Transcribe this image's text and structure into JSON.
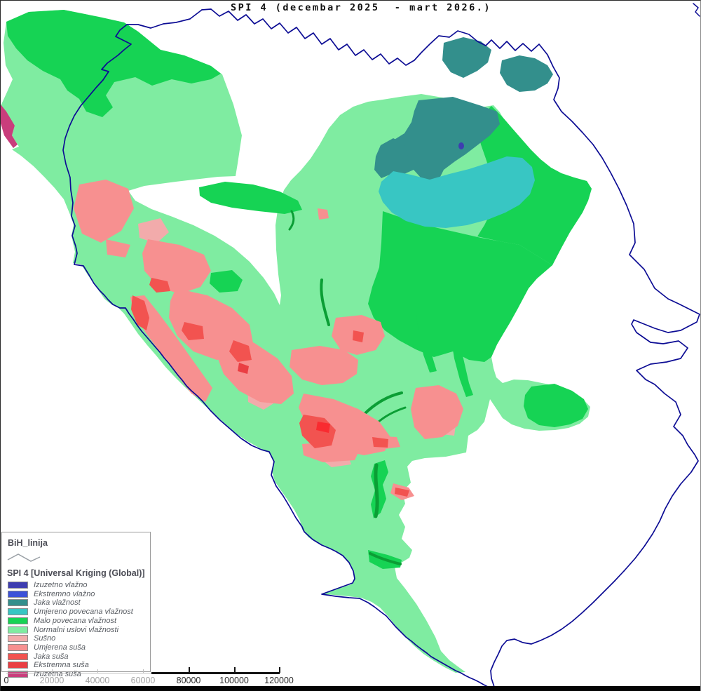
{
  "title": "SPI 4 (decembar 2025  - mart 2026.)",
  "legend": {
    "line_layer_label": "BiH_linija",
    "raster_heading": "SPI 4 [Universal Kriging (Global)]",
    "classes": [
      {
        "key": "izuzetno_vlazno",
        "label": "Izuzetno vlažno",
        "color": "#3e3db0"
      },
      {
        "key": "ekstremno_vlazno",
        "label": "Ekstremno vlažno",
        "color": "#3c51d8"
      },
      {
        "key": "jaka_vlaznost",
        "label": "Jaka vlažnost",
        "color": "#338f8c"
      },
      {
        "key": "umjereno_povecana",
        "label": "Umjereno povecana vlažnost",
        "color": "#38c6c3"
      },
      {
        "key": "malo_povecana",
        "label": "Malo povecana vlažnost",
        "color": "#16d354"
      },
      {
        "key": "normalni",
        "label": "Normalni uslovi vlažnosti",
        "color": "#7feca1"
      },
      {
        "key": "susno",
        "label": "Sušno",
        "color": "#f2abab"
      },
      {
        "key": "umjerena_susa",
        "label": "Umjerena suša",
        "color": "#f79090"
      },
      {
        "key": "jaka_susa",
        "label": "Jaka suša",
        "color": "#f25350"
      },
      {
        "key": "ekstremna_susa",
        "label": "Ekstremna suša",
        "color": "#ea3e43"
      },
      {
        "key": "izuzetna_susa",
        "label": "Izuzetna suša",
        "color": "#c93d7c"
      }
    ]
  },
  "scalebar": {
    "labels": [
      "0",
      "20000",
      "40000",
      "60000",
      "80000",
      "100000",
      "120000"
    ]
  },
  "map": {
    "boundary_layer": "BiH_linija",
    "boundary_color": "#0c0c94",
    "extra_colors": {
      "dark_green": "#0b9e35",
      "bright_red": "#f92b30"
    }
  }
}
